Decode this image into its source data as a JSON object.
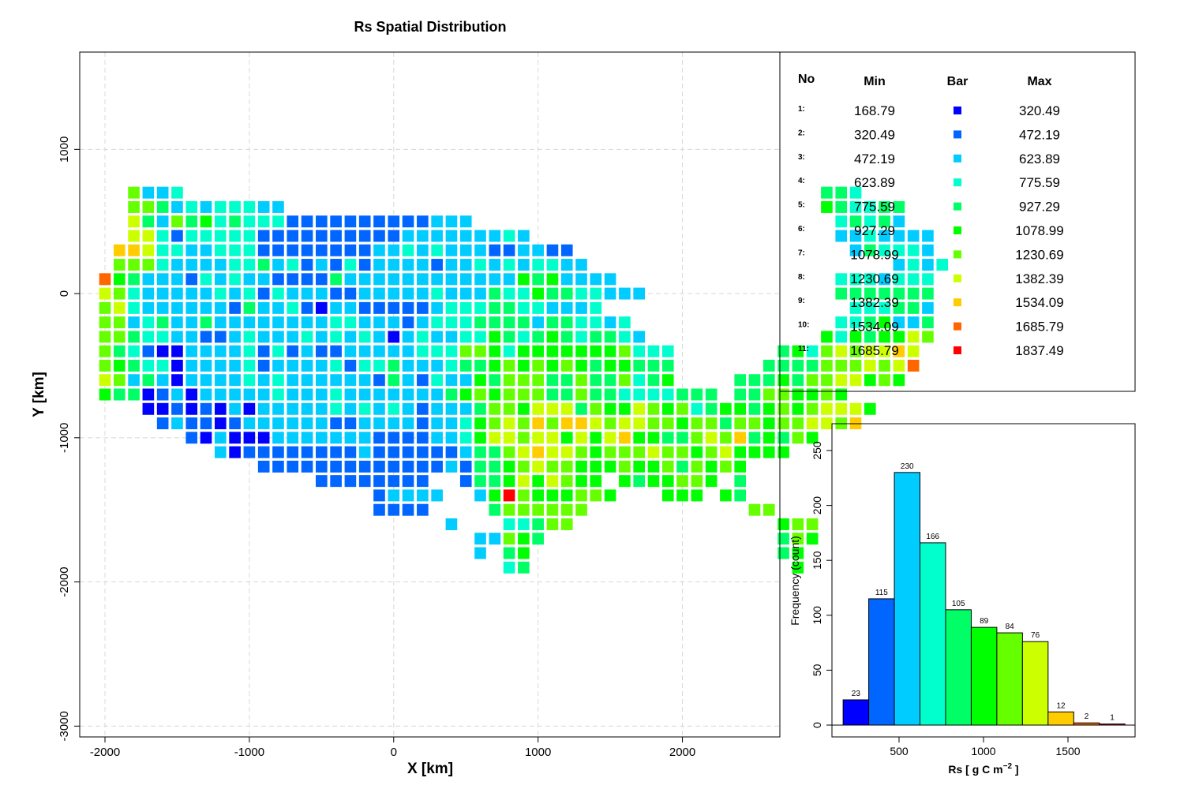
{
  "map": {
    "title": "Rs Spatial Distribution",
    "xlabel": "X [km]",
    "ylabel": "Y [km]",
    "x_ticks": [
      "-2000",
      "-1000",
      "0",
      "1000",
      "2000"
    ],
    "y_ticks": [
      "1000",
      "0",
      "-1000",
      "-2000",
      "-3000"
    ]
  },
  "legend": {
    "headers": {
      "no": "No",
      "min": "Min",
      "bar": "Bar",
      "max": "Max"
    },
    "rows": [
      {
        "no": "1:",
        "min": "168.79",
        "max": "320.49",
        "color": "#0000FF"
      },
      {
        "no": "2:",
        "min": "320.49",
        "max": "472.19",
        "color": "#0066FF"
      },
      {
        "no": "3:",
        "min": "472.19",
        "max": "623.89",
        "color": "#00CCFF"
      },
      {
        "no": "4:",
        "min": "623.89",
        "max": "775.59",
        "color": "#00FFCC"
      },
      {
        "no": "5:",
        "min": "775.59",
        "max": "927.29",
        "color": "#00FF66"
      },
      {
        "no": "6:",
        "min": "927.29",
        "max": "1078.99",
        "color": "#00FF00"
      },
      {
        "no": "7:",
        "min": "1078.99",
        "max": "1230.69",
        "color": "#66FF00"
      },
      {
        "no": "8:",
        "min": "1230.69",
        "max": "1382.39",
        "color": "#CCFF00"
      },
      {
        "no": "9:",
        "min": "1382.39",
        "max": "1534.09",
        "color": "#FFCC00"
      },
      {
        "no": "10:",
        "min": "1534.09",
        "max": "1685.79",
        "color": "#FF6600"
      },
      {
        "no": "11:",
        "min": "1685.79",
        "max": "1837.49",
        "color": "#FF0000"
      }
    ]
  },
  "histogram": {
    "xlabel_main": "Rs [ g C m",
    "xlabel_sup": "−2",
    "xlabel_end": " ]",
    "ylabel": "Frequency (count)",
    "x_ticks": [
      "500",
      "1000",
      "1500"
    ],
    "y_ticks": [
      "0",
      "50",
      "100",
      "150",
      "200",
      "250"
    ]
  },
  "chart_data": [
    {
      "type": "heatmap",
      "title": "Rs Spatial Distribution",
      "xlabel": "X [km]",
      "ylabel": "Y [km]",
      "xlim": [
        -2175,
        2675
      ],
      "ylim": [
        -3075,
        1675
      ],
      "grid": true,
      "cell_size_km": 100,
      "x_start": -2000,
      "y_start": 700,
      "class_ranges": [
        [
          168.79,
          320.49
        ],
        [
          320.49,
          472.19
        ],
        [
          472.19,
          623.89
        ],
        [
          623.89,
          775.59
        ],
        [
          775.59,
          927.29
        ],
        [
          927.29,
          1078.99
        ],
        [
          1078.99,
          1230.69
        ],
        [
          1230.69,
          1382.39
        ],
        [
          1382.39,
          1534.09
        ],
        [
          1534.09,
          1685.79
        ],
        [
          1685.79,
          1837.49
        ]
      ],
      "rows_note": "Each string is one map row from y=700 km downward in 100 km steps; each character is one 100 km cell starting at x=-2000 km. '.' = no data, 1-9 = class 1-9, A = class 10, B = class 11.",
      "rows": [
        "..7334............................................554....",
        "..77534344433.....................................654455",
        "..853756454442222222222333.........................45453",
        "..8842444442222222222333333343.....................3343333",
        ".99844334442222222233434333223322...................354443",
        ".777433334453423242333323343434433.....................3434",
        "A65333243433222253333333333336563333...............4443444",
        "87433333434243332233333433354465544333.............5555555",
        "78433333325334213322222344455443334.................444553",
        "7734533533333333443332344455553554434..............4456335",
        "77544332234333434343134334465456545543............64656687",
        "7542113333424232233333444776466666667444.......5647878898",
        "7654413333423333424453334556767676566555......5555777878A",
        "8735313333434333333253243365777557557456....555657788676",
        "6551231333334333433333335676777557554444555.55776676",
        "...112121313333343434323335776888576687674566567678886",
        "....2322123333332233332334678797998788776775776778879",
        "......21311133333332222334688788686896655787956576",
        "........3122222222322222235578988767778776786666",
        "...........2222222222222325567877666766757676",
        "...............22222222..2556868766.6566776.5",
        "...................23333..36B7666776...666.65",
        "...................2222....5777777...........77",
        "........................3...44577..............677",
        "..........................33765................576",
        "..........................3.56.................56",
        "............................45..................6"
      ]
    },
    {
      "type": "bar",
      "title": "",
      "xlabel": "Rs [ g C m−2 ]",
      "ylabel": "Frequency (count)",
      "bin_edges": [
        168.79,
        320.49,
        472.19,
        623.89,
        775.59,
        927.29,
        1078.99,
        1230.69,
        1382.39,
        1534.09,
        1685.79,
        1837.49
      ],
      "values": [
        23,
        115,
        230,
        166,
        105,
        89,
        84,
        76,
        12,
        2,
        1
      ],
      "xlim": [
        0,
        1837.49
      ],
      "ylim": [
        0,
        270
      ],
      "colors": [
        "#0000FF",
        "#0066FF",
        "#00CCFF",
        "#00FFCC",
        "#00FF66",
        "#00FF00",
        "#66FF00",
        "#CCFF00",
        "#FFCC00",
        "#FF6600",
        "#FF0000"
      ]
    }
  ]
}
